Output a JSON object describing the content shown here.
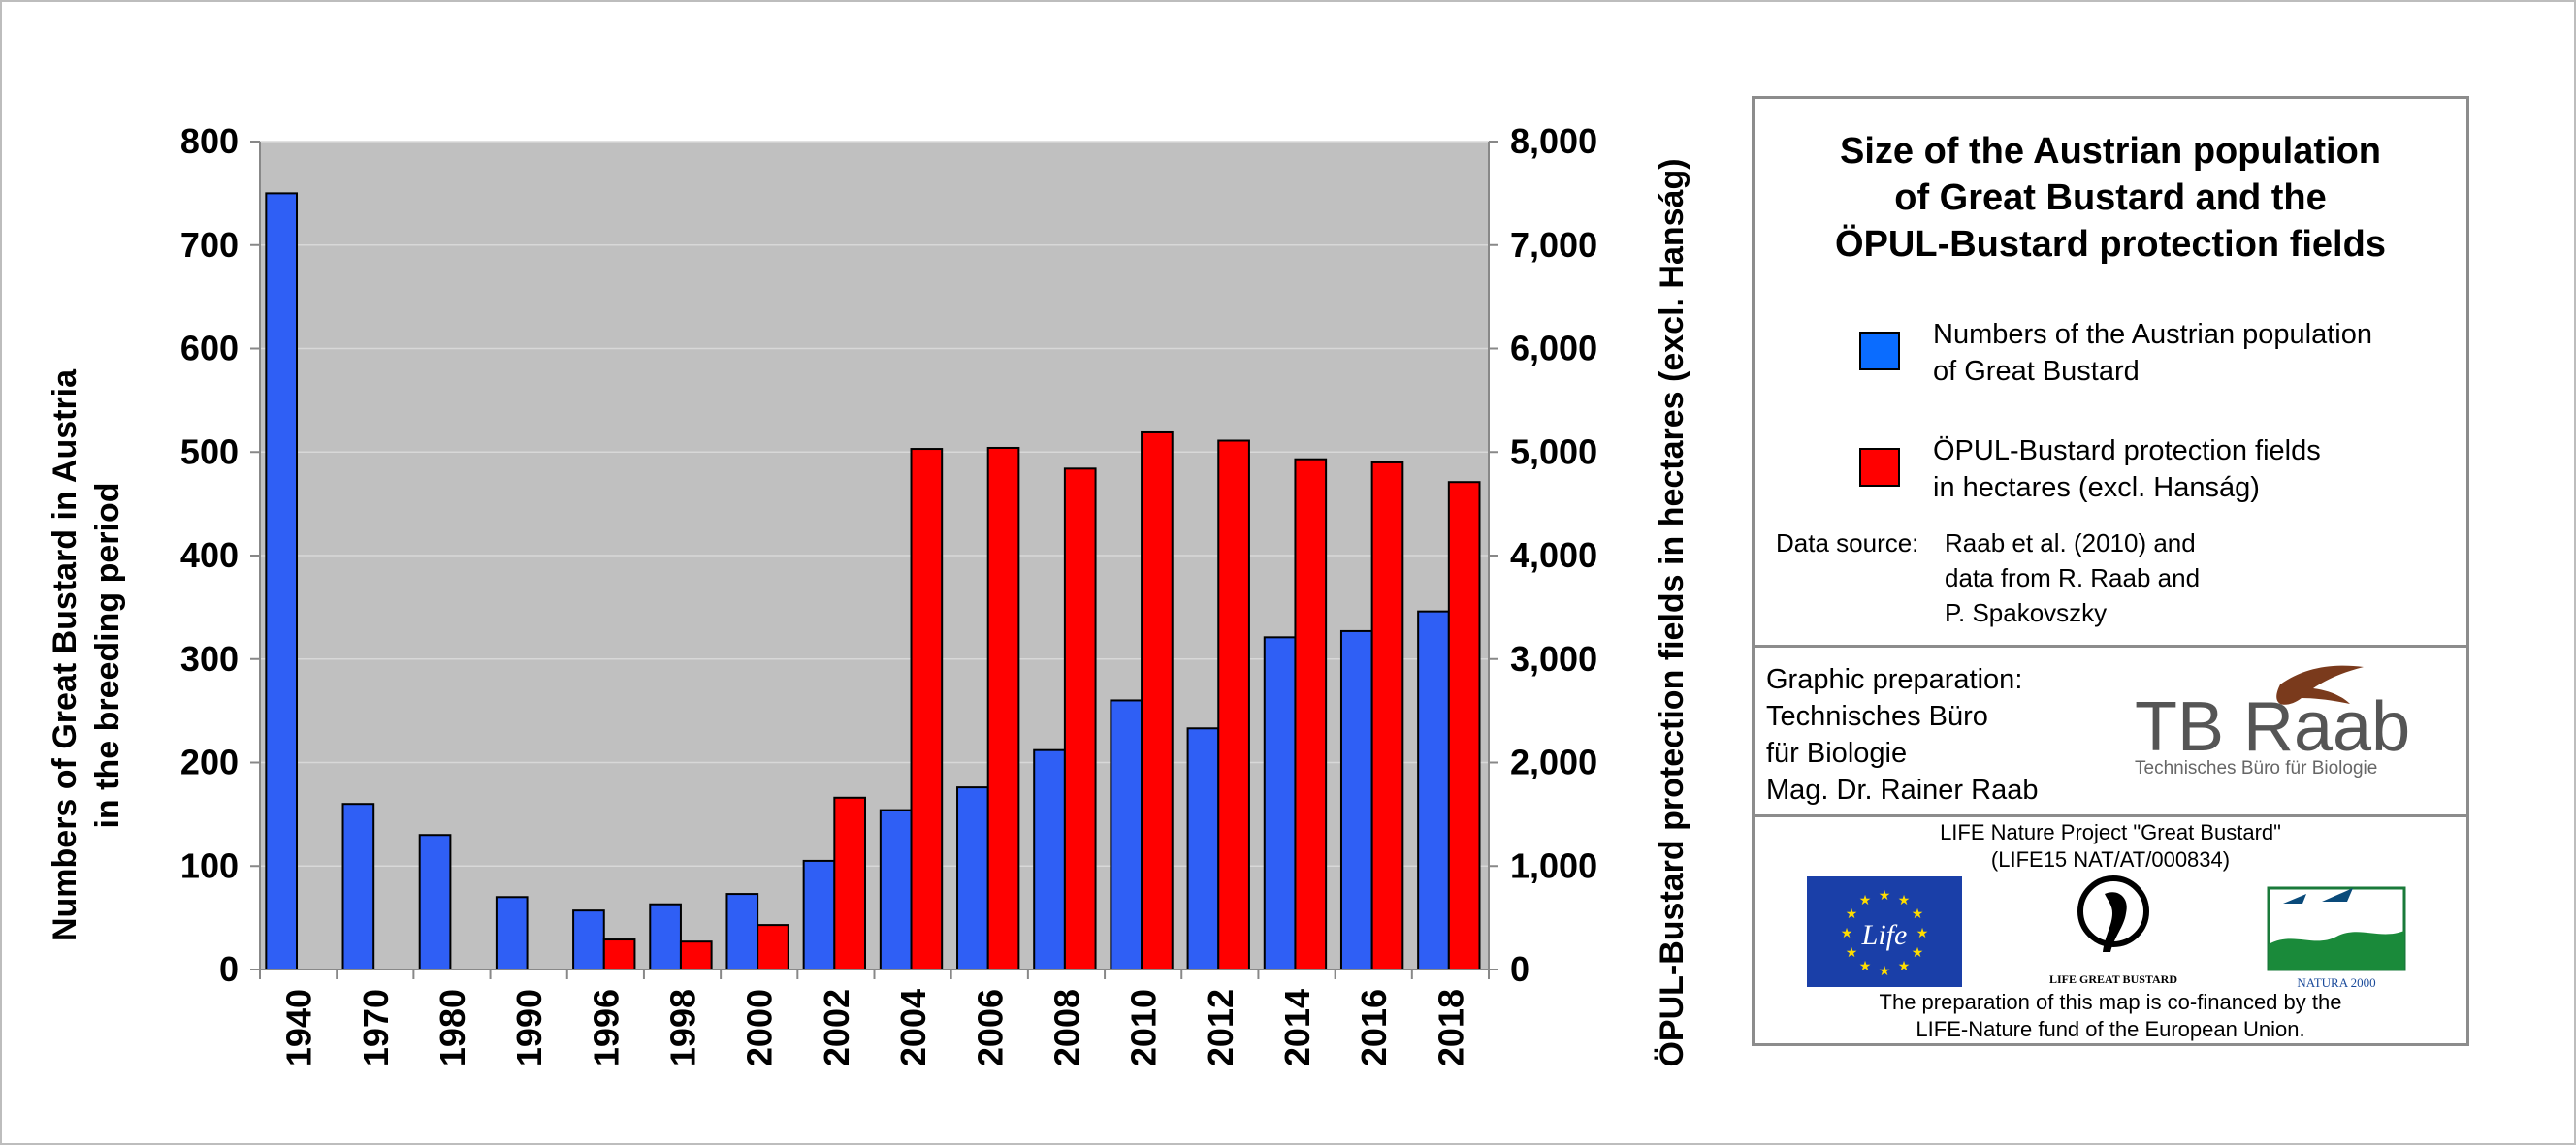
{
  "chart_data": {
    "type": "bar",
    "categories": [
      "1940",
      "1970",
      "1980",
      "1990",
      "1996",
      "1998",
      "2000",
      "2002",
      "2004",
      "2006",
      "2008",
      "2010",
      "2012",
      "2014",
      "2016",
      "2018"
    ],
    "series": [
      {
        "name": "Numbers of the Austrian population of Great Bustard",
        "axis": "left",
        "color": "#2f5ff5",
        "values": [
          750,
          160,
          130,
          70,
          57,
          63,
          73,
          105,
          154,
          176,
          212,
          260,
          233,
          321,
          327,
          346
        ]
      },
      {
        "name": "ÖPUL-Bustard protection fields in hectares (excl. Hanság)",
        "axis": "right",
        "color": "#ff0000",
        "values": [
          null,
          null,
          null,
          null,
          290,
          270,
          430,
          1660,
          5030,
          5040,
          4840,
          5190,
          5110,
          4930,
          4900,
          4710
        ]
      }
    ],
    "ylabel": "Numbers of Great Bustard in Austria in the breeding period",
    "ylabel_lines": [
      "Numbers of Great Bustard in Austria",
      "in the breeding period"
    ],
    "y2label": "ÖPUL-Bustard protection fields in hectares (excl. Hanság)",
    "ylim": [
      0,
      800
    ],
    "y2lim": [
      0,
      8000
    ],
    "yticks": [
      "0",
      "100",
      "200",
      "300",
      "400",
      "500",
      "600",
      "700",
      "800"
    ],
    "y2ticks": [
      "0",
      "1,000",
      "2,000",
      "3,000",
      "4,000",
      "5,000",
      "6,000",
      "7,000",
      "8,000"
    ],
    "grid": true,
    "legend_position": "right",
    "plot_background": "#c0c0c0"
  },
  "side_panel": {
    "title_lines": [
      "Size of the Austrian population",
      "of Great Bustard and the",
      "ÖPUL-Bustard protection fields"
    ],
    "legend": [
      {
        "lines": [
          "Numbers of the Austrian population",
          "of Great Bustard"
        ],
        "color": "#0a6cff"
      },
      {
        "lines": [
          "ÖPUL-Bustard protection fields",
          "in hectares (excl. Hanság)"
        ],
        "color": "#ff0000"
      }
    ],
    "source_label": "Data source:",
    "source_lines": [
      "Raab et al. (2010) and",
      "data from R. Raab and",
      "P. Spakovszky"
    ],
    "prep_lines": [
      "Graphic preparation:",
      "Technisches Büro",
      "für Biologie",
      "Mag. Dr. Rainer Raab"
    ],
    "logo_text": "TB Raab",
    "logo_subtext": "Technisches Büro für Biologie",
    "life_lines": [
      "LIFE Nature Project \"Great Bustard\"",
      "(LIFE15 NAT/AT/000834)"
    ],
    "eu_logo_text": "Life",
    "life_gb_logo_text": "LIFE GREAT BUSTARD",
    "natura_logo_text": "NATURA 2000",
    "cofin_lines": [
      "The preparation of this map is co-financed by the",
      "LIFE-Nature fund of the European Union."
    ]
  }
}
